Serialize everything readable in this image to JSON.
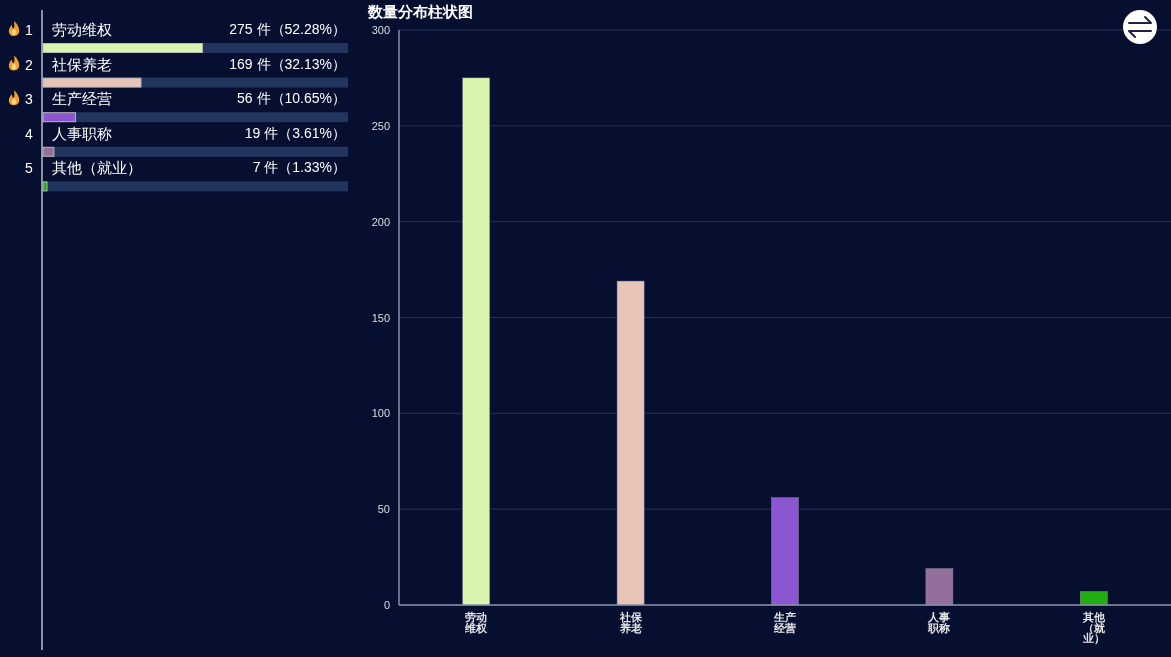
{
  "chart_data": [
    {
      "type": "bar",
      "orientation": "horizontal",
      "categories": [
        "劳动维权",
        "社保养老",
        "生产经营",
        "人事职称",
        "其他（就业）"
      ],
      "values": [
        52.28,
        32.13,
        10.65,
        3.61,
        1.33
      ],
      "colors": [
        "#d8f5b0",
        "#e9c5b9",
        "#8b56cf",
        "#946f9c",
        "#22ae13"
      ],
      "value_labels": [
        "275 件（52.28%）",
        "169 件（32.13%）",
        "56 件（10.65%）",
        "19 件（3.61%）",
        "7 件（1.33%）"
      ],
      "xlim": [
        0,
        100
      ],
      "tick_labels": "y",
      "annotations": [
        "1",
        "2",
        "3",
        "4",
        "5"
      ]
    },
    {
      "type": "bar",
      "title": "数量分布柱状图",
      "categories": [
        "劳动维权",
        "社保养老",
        "生产经营",
        "人事职称",
        "其他（就业）"
      ],
      "values": [
        275,
        169,
        56,
        19,
        7
      ],
      "colors": [
        "#d8f5b0",
        "#e9c5b9",
        "#8b56cf",
        "#946f9c",
        "#22ae13"
      ],
      "ylim": [
        0,
        300
      ],
      "yticks": [
        0,
        50,
        100,
        150,
        200,
        250,
        300
      ],
      "grid": "y"
    }
  ]
}
